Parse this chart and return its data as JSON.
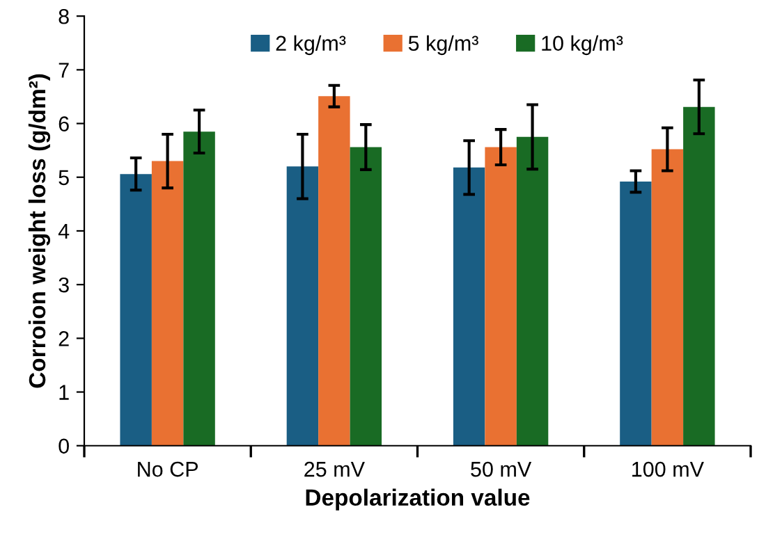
{
  "chart_data": {
    "type": "bar",
    "xlabel": "Depolarization value",
    "ylabel": "Corroion weight loss (g/dm²)",
    "categories": [
      "No CP",
      "25 mV",
      "50 mV",
      "100 mV"
    ],
    "series": [
      {
        "name": "2 kg/m³",
        "color": "#1a5e84",
        "values": [
          5.06,
          5.2,
          5.18,
          4.92
        ],
        "errors": [
          0.3,
          0.6,
          0.5,
          0.2
        ]
      },
      {
        "name": "5 kg/m³",
        "color": "#e97132",
        "values": [
          5.3,
          6.51,
          5.56,
          5.52
        ],
        "errors": [
          0.5,
          0.2,
          0.33,
          0.4
        ]
      },
      {
        "name": "10 kg/m³",
        "color": "#196b24",
        "values": [
          5.85,
          5.56,
          5.75,
          6.31
        ],
        "errors": [
          0.4,
          0.42,
          0.6,
          0.5
        ]
      }
    ],
    "ylim": [
      0,
      8
    ],
    "yticks": [
      0,
      1,
      2,
      3,
      4,
      5,
      6,
      7,
      8
    ],
    "grid": false,
    "legend": "top"
  }
}
